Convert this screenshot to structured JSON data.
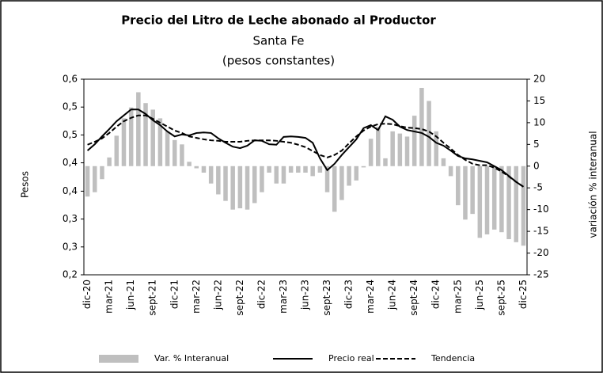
{
  "chart_data": {
    "type": "combo",
    "title": "Precio del Litro de Leche abonado al Productor",
    "subtitle": [
      "Santa Fe",
      "(pesos constantes)"
    ],
    "ylabel": "Pesos",
    "y2label": "variación % interanual",
    "categories": [
      "dic-20",
      null,
      null,
      "mar-21",
      null,
      null,
      "jun-21",
      null,
      null,
      "sept-21",
      null,
      null,
      "dic-21",
      null,
      null,
      "mar-22",
      null,
      null,
      "jun-22",
      null,
      null,
      "sept-22",
      null,
      null,
      "dic-22",
      null,
      null,
      "mar-23",
      null,
      null,
      "jun-23",
      null,
      null,
      "sept-23",
      null,
      null,
      "dic-23",
      null,
      null,
      "mar-24",
      null,
      null,
      "jun-24",
      null,
      null,
      "sept-24",
      null,
      null,
      "dic-24",
      null,
      null,
      "mar-25",
      null,
      null,
      "jun-25",
      null,
      null,
      "sept-25",
      null,
      null,
      "dic-25"
    ],
    "ylim": [
      0.2,
      0.6
    ],
    "yticks": [
      {
        "value": 0.6,
        "label": "0,6"
      },
      {
        "value": 0.543,
        "label": "0,5"
      },
      {
        "value": 0.486,
        "label": "0,5"
      },
      {
        "value": 0.429,
        "label": "0,4"
      },
      {
        "value": 0.371,
        "label": "0,4"
      },
      {
        "value": 0.314,
        "label": "0,3"
      },
      {
        "value": 0.257,
        "label": "0,3"
      },
      {
        "value": 0.2,
        "label": "0,2"
      }
    ],
    "y2lim": [
      -25,
      20
    ],
    "y2ticks": [
      20,
      15,
      10,
      5,
      0,
      -5,
      -10,
      -15,
      -20,
      -25
    ],
    "series": [
      {
        "name": "Var. % Interanual",
        "type": "bar",
        "axis": "y2",
        "color": "#bfbfbf",
        "values": [
          -7,
          -6,
          -3,
          2,
          7,
          11,
          13.5,
          17,
          14.5,
          13,
          11,
          8,
          6,
          5,
          1,
          -0.5,
          -1.5,
          -4,
          -6.5,
          -8,
          -10,
          -9.7,
          -10,
          -8.5,
          -6,
          -1.5,
          -4,
          -4,
          -1.5,
          -1.5,
          -1.5,
          -2.3,
          -1.5,
          -6,
          -10.5,
          -7.8,
          -4.5,
          -3.3,
          -0.3,
          6.3,
          9,
          1.8,
          8,
          7.5,
          6.8,
          11.6,
          18,
          15,
          8,
          1.8,
          -2.3,
          -9,
          -12.3,
          -11,
          -16.5,
          -15.7,
          -14.6,
          -15.2,
          -16.8,
          -17.5,
          -18.3
        ]
      },
      {
        "name": "Precio real",
        "type": "line",
        "color": "#000000",
        "line_style": "solid",
        "values": [
          0.454,
          0.467,
          0.483,
          0.498,
          0.514,
          0.526,
          0.538,
          0.538,
          0.529,
          0.516,
          0.506,
          0.493,
          0.483,
          0.487,
          0.485,
          0.49,
          0.491,
          0.49,
          0.479,
          0.47,
          0.462,
          0.459,
          0.464,
          0.475,
          0.474,
          0.467,
          0.466,
          0.482,
          0.483,
          0.482,
          0.48,
          0.47,
          0.438,
          0.414,
          0.427,
          0.445,
          0.461,
          0.477,
          0.5,
          0.506,
          0.496,
          0.524,
          0.517,
          0.503,
          0.496,
          0.493,
          0.49,
          0.482,
          0.47,
          0.464,
          0.454,
          0.443,
          0.438,
          0.436,
          0.433,
          0.43,
          0.422,
          0.414,
          0.402,
          0.39,
          0.38
        ]
      },
      {
        "name": "Tendencia",
        "type": "line",
        "color": "#000000",
        "line_style": "dashed",
        "values": [
          0.466,
          0.472,
          0.479,
          0.49,
          0.503,
          0.514,
          0.521,
          0.526,
          0.526,
          0.519,
          0.511,
          0.503,
          0.495,
          0.49,
          0.483,
          0.48,
          0.477,
          0.475,
          0.474,
          0.472,
          0.472,
          0.472,
          0.474,
          0.475,
          0.475,
          0.475,
          0.474,
          0.472,
          0.47,
          0.466,
          0.461,
          0.453,
          0.445,
          0.44,
          0.445,
          0.454,
          0.469,
          0.483,
          0.495,
          0.503,
          0.508,
          0.509,
          0.508,
          0.504,
          0.501,
          0.5,
          0.498,
          0.493,
          0.483,
          0.47,
          0.458,
          0.445,
          0.435,
          0.427,
          0.424,
          0.424,
          0.419,
          0.411,
          0.401,
          0.39,
          0.38
        ]
      }
    ]
  }
}
